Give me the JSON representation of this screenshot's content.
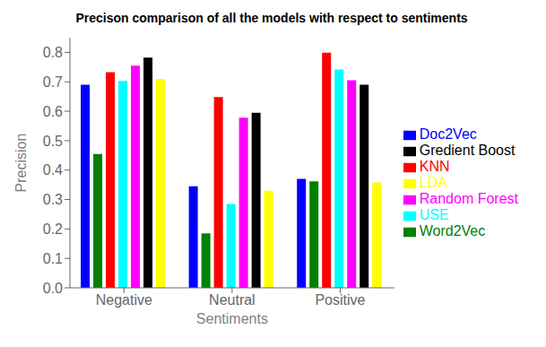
{
  "chart_data": {
    "type": "bar",
    "title": "Precison comparison of all the models with respect to sentiments",
    "xlabel": "Sentiments",
    "ylabel": "Precision",
    "categories": [
      "Negative",
      "Neutral",
      "Positive"
    ],
    "series": [
      {
        "name": "Doc2Vec",
        "color": "blue",
        "values": [
          0.69,
          0.345,
          0.37
        ]
      },
      {
        "name": "Word2Vec",
        "color": "green",
        "values": [
          0.455,
          0.185,
          0.362
        ]
      },
      {
        "name": "KNN",
        "color": "red",
        "values": [
          0.733,
          0.648,
          0.799
        ]
      },
      {
        "name": "USE",
        "color": "cyan",
        "values": [
          0.703,
          0.285,
          0.742
        ]
      },
      {
        "name": "Random Forest",
        "color": "magenta",
        "values": [
          0.755,
          0.578,
          0.705
        ]
      },
      {
        "name": "Gredient Boost",
        "color": "black",
        "values": [
          0.782,
          0.595,
          0.69
        ]
      },
      {
        "name": "LDA",
        "color": "yellow",
        "values": [
          0.71,
          0.33,
          0.358
        ]
      }
    ],
    "ylim": [
      0.0,
      0.85
    ],
    "yticks": [
      {
        "value": 0,
        "label": "0.0"
      },
      0.1,
      0.2,
      0.3,
      0.4,
      0.5,
      0.6,
      0.7,
      0.8
    ],
    "grid": false,
    "legend": "right"
  }
}
